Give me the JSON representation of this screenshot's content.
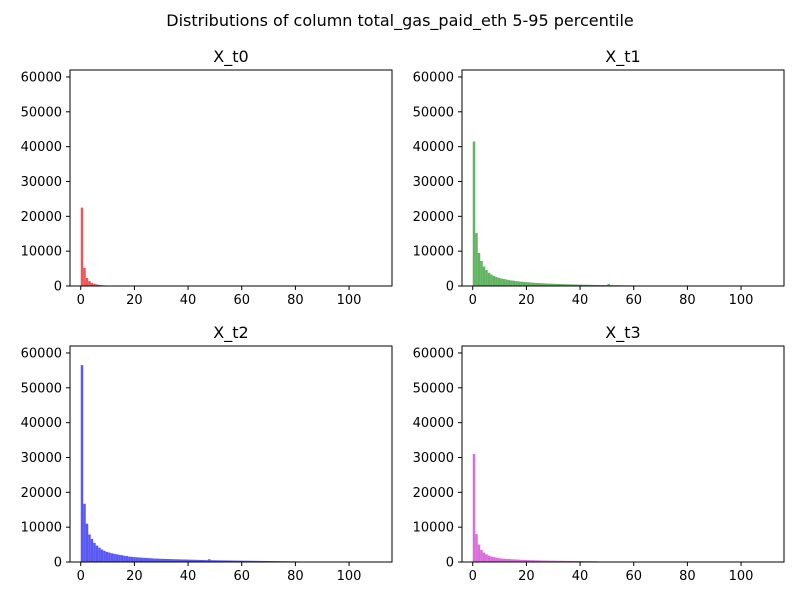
{
  "figure": {
    "suptitle": "Distributions of column total_gas_paid_eth 5-95 percentile"
  },
  "chart_data": [
    {
      "type": "bar",
      "title": "X_t0",
      "xlabel": "",
      "ylabel": "",
      "xlim": [
        -4,
        116
      ],
      "ylim": [
        0,
        62000
      ],
      "xticks": [
        "0",
        "20",
        "40",
        "60",
        "80",
        "100"
      ],
      "yticks": [
        "0",
        "10000",
        "20000",
        "30000",
        "40000",
        "50000",
        "60000"
      ],
      "bin_width": 0.93,
      "color": "#e32020",
      "x": [
        0.47,
        1.4,
        2.33,
        3.26,
        4.19,
        5.12,
        6.05,
        6.98,
        7.91,
        8.84
      ],
      "values": [
        22500,
        5200,
        2300,
        1400,
        900,
        650,
        450,
        320,
        230,
        170
      ]
    },
    {
      "type": "bar",
      "title": "X_t1",
      "xlabel": "",
      "ylabel": "",
      "xlim": [
        -4,
        116
      ],
      "ylim": [
        0,
        62000
      ],
      "xticks": [
        "0",
        "20",
        "40",
        "60",
        "80",
        "100"
      ],
      "yticks": [
        "0",
        "10000",
        "20000",
        "30000",
        "40000",
        "50000",
        "60000"
      ],
      "bin_width": 0.93,
      "color": "#2e9a2e",
      "x": [
        0.47,
        1.4,
        2.33,
        3.26,
        4.19,
        5.12,
        6.05,
        6.98,
        7.91,
        8.84,
        9.77,
        10.7,
        11.63,
        12.56,
        13.49,
        14.42,
        15.35,
        16.28,
        17.21,
        18.14,
        19.07,
        20.0,
        20.93,
        21.86,
        22.79,
        23.72,
        24.65,
        25.58,
        26.51,
        27.44,
        28.37,
        29.3,
        30.23,
        31.16,
        32.09,
        33.02,
        33.95,
        34.88,
        35.81,
        36.74,
        37.67,
        38.6,
        39.53,
        40.46,
        41.39,
        42.32,
        43.25,
        44.18,
        45.11,
        46.04,
        46.97,
        47.9,
        48.83,
        49.76,
        50.69,
        51.62,
        52.55,
        53.48,
        54.41,
        55.34,
        56.27,
        57.2,
        58.13,
        59.06,
        59.99,
        60.92,
        61.85,
        62.78,
        63.71,
        64.64,
        65.57,
        66.5,
        67.43,
        68.36
      ],
      "values": [
        41500,
        15200,
        9500,
        7200,
        5600,
        4600,
        3800,
        3300,
        2900,
        2600,
        2350,
        2150,
        2000,
        1850,
        1700,
        1600,
        1500,
        1400,
        1320,
        1250,
        1180,
        1100,
        1050,
        980,
        930,
        880,
        840,
        800,
        760,
        730,
        690,
        660,
        630,
        600,
        570,
        550,
        520,
        500,
        480,
        460,
        440,
        420,
        400,
        390,
        370,
        360,
        340,
        330,
        310,
        300,
        290,
        280,
        270,
        260,
        600,
        240,
        230,
        220,
        210,
        200,
        190,
        180,
        175,
        170,
        160,
        150,
        145,
        140,
        135,
        130,
        125,
        120,
        115,
        110
      ]
    },
    {
      "type": "bar",
      "title": "X_t2",
      "xlabel": "",
      "ylabel": "",
      "xlim": [
        -4,
        116
      ],
      "ylim": [
        0,
        62000
      ],
      "xticks": [
        "0",
        "20",
        "40",
        "60",
        "80",
        "100"
      ],
      "yticks": [
        "0",
        "10000",
        "20000",
        "30000",
        "40000",
        "50000",
        "60000"
      ],
      "bin_width": 0.93,
      "color": "#2020ee",
      "x": [
        0.47,
        1.4,
        2.33,
        3.26,
        4.19,
        5.12,
        6.05,
        6.98,
        7.91,
        8.84,
        9.77,
        10.7,
        11.63,
        12.56,
        13.49,
        14.42,
        15.35,
        16.28,
        17.21,
        18.14,
        19.07,
        20.0,
        20.93,
        21.86,
        22.79,
        23.72,
        24.65,
        25.58,
        26.51,
        27.44,
        28.37,
        29.3,
        30.23,
        31.16,
        32.09,
        33.02,
        33.95,
        34.88,
        35.81,
        36.74,
        37.67,
        38.6,
        39.53,
        40.46,
        41.39,
        42.32,
        43.25,
        44.18,
        45.11,
        46.04,
        46.97,
        47.9,
        48.83,
        49.76,
        50.69,
        51.62,
        52.55,
        53.48,
        54.41,
        55.34,
        56.27,
        57.2,
        58.13,
        59.06,
        59.99,
        60.92,
        61.85,
        62.78,
        63.71,
        64.64,
        65.57,
        66.5,
        67.43,
        68.36,
        69.29,
        70.22,
        71.15,
        72.08,
        73.01,
        73.94,
        74.87,
        75.8,
        76.73,
        77.66,
        78.59,
        79.52,
        80.45,
        81.38
      ],
      "values": [
        56500,
        16700,
        11000,
        7900,
        6600,
        5500,
        4700,
        4100,
        3600,
        3200,
        2900,
        2700,
        2500,
        2350,
        2200,
        2050,
        1950,
        1800,
        1700,
        1550,
        1500,
        1400,
        1350,
        1300,
        1250,
        1200,
        1150,
        1100,
        1050,
        1000,
        980,
        950,
        920,
        900,
        870,
        850,
        820,
        800,
        780,
        760,
        740,
        720,
        700,
        680,
        660,
        640,
        620,
        600,
        580,
        560,
        540,
        800,
        520,
        500,
        490,
        480,
        470,
        460,
        450,
        440,
        430,
        420,
        410,
        400,
        390,
        380,
        370,
        360,
        350,
        340,
        330,
        320,
        310,
        300,
        290,
        280,
        270,
        260,
        250,
        240,
        230,
        220,
        210,
        200,
        190,
        180,
        170,
        160
      ]
    },
    {
      "type": "bar",
      "title": "X_t3",
      "xlabel": "",
      "ylabel": "",
      "xlim": [
        -4,
        116
      ],
      "ylim": [
        0,
        62000
      ],
      "xticks": [
        "0",
        "20",
        "40",
        "60",
        "80",
        "100"
      ],
      "yticks": [
        "0",
        "10000",
        "20000",
        "30000",
        "40000",
        "50000",
        "60000"
      ],
      "bin_width": 0.93,
      "color": "#cc3ccc",
      "x": [
        0.47,
        1.4,
        2.33,
        3.26,
        4.19,
        5.12,
        6.05,
        6.98,
        7.91,
        8.84,
        9.77,
        10.7,
        11.63,
        12.56,
        13.49,
        14.42,
        15.35,
        16.28,
        17.21,
        18.14,
        19.07,
        20.0,
        20.93,
        21.86,
        22.79,
        23.72,
        24.65,
        25.58,
        26.51,
        27.44,
        28.37,
        29.3,
        30.23,
        31.16,
        32.09,
        33.02,
        33.95,
        34.88,
        35.81,
        36.74,
        37.67,
        38.6,
        39.53,
        40.46,
        41.39,
        42.32,
        43.25,
        44.18,
        45.11,
        46.04
      ],
      "values": [
        31000,
        8000,
        5000,
        3500,
        2700,
        2200,
        1850,
        1600,
        1400,
        1250,
        1100,
        1000,
        950,
        900,
        850,
        800,
        760,
        720,
        680,
        640,
        610,
        580,
        550,
        520,
        500,
        480,
        460,
        440,
        420,
        400,
        390,
        380,
        370,
        360,
        350,
        340,
        330,
        320,
        310,
        300,
        290,
        280,
        270,
        260,
        250,
        240,
        230,
        220,
        210,
        200
      ]
    }
  ]
}
